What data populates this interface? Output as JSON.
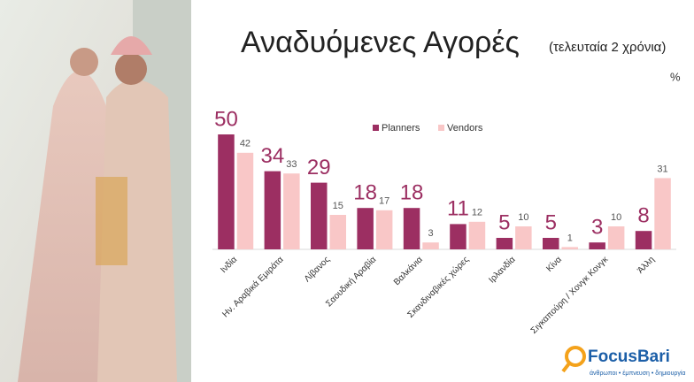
{
  "chart_data": {
    "type": "bar",
    "title": "Αναδυόμενες Αγορές",
    "subtitle": "(τελευταία 2 χρόνια)",
    "unit_label": "%",
    "categories": [
      "Ινδία",
      "Ην. Αραβικά Εμιράτα",
      "Λίβανος",
      "Σαουδική Αραβία",
      "Βαλκάνια",
      "Σκανδιναβικές χώρες",
      "Ιρλανδία",
      "Κίνα",
      "Σιγκαπούρη / Χονγκ Κονγκ",
      "Άλλη"
    ],
    "series": [
      {
        "name": "Planners",
        "color": "#9c2f62",
        "values": [
          50,
          34,
          29,
          18,
          18,
          11,
          5,
          5,
          3,
          8
        ]
      },
      {
        "name": "Vendors",
        "color": "#f9c7c7",
        "values": [
          42,
          33,
          15,
          17,
          3,
          12,
          10,
          1,
          10,
          31
        ]
      }
    ],
    "grid": false,
    "legend": "top"
  },
  "logo": {
    "name": "FocusBari",
    "tagline": "άνθρωποι • έμπνευση • δημιουργία"
  }
}
